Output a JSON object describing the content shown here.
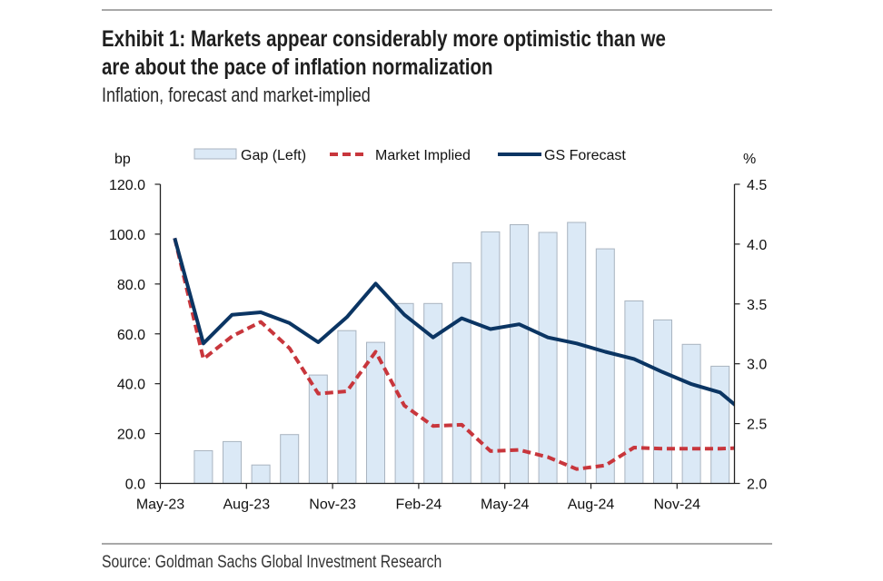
{
  "header": {
    "title_line1": "Exhibit 1: Markets appear considerably more optimistic than we",
    "title_line2": "are about the pace of inflation normalization",
    "subtitle": "Inflation, forecast and market-implied"
  },
  "footer": {
    "source": "Source: Goldman Sachs Global Investment Research"
  },
  "colors": {
    "gap_fill": "#dbe9f6",
    "gap_stroke": "#a9b4c0",
    "market_implied": "#c8363c",
    "gs_forecast": "#0b3563"
  },
  "chart_data": {
    "type": "bar+line",
    "title": "Inflation, forecast and market-implied",
    "left_axis_unit": "bp",
    "right_axis_unit": "%",
    "left_ylim": [
      0,
      120
    ],
    "right_ylim": [
      2.0,
      4.5
    ],
    "left_ticks": [
      "0.0",
      "20.0",
      "40.0",
      "60.0",
      "80.0",
      "100.0",
      "120.0"
    ],
    "right_ticks": [
      "2.0",
      "2.5",
      "3.0",
      "3.5",
      "4.0",
      "4.5"
    ],
    "x_tick_labels": [
      "May-23",
      "Aug-23",
      "Nov-23",
      "Feb-24",
      "May-24",
      "Aug-24",
      "Nov-24"
    ],
    "categories": [
      "May-23",
      "Jun-23",
      "Jul-23",
      "Aug-23",
      "Sep-23",
      "Oct-23",
      "Nov-23",
      "Dec-23",
      "Jan-24",
      "Feb-24",
      "Mar-24",
      "Apr-24",
      "May-24",
      "Jun-24",
      "Jul-24",
      "Aug-24",
      "Sep-24",
      "Oct-24",
      "Nov-24",
      "Dec-24",
      "Jan-25"
    ],
    "legend": [
      "Gap (Left)",
      "Market Implied",
      "GS Forecast"
    ],
    "legend_position": "top",
    "grid": false,
    "series": [
      {
        "name": "Gap (Left)",
        "type": "bar",
        "axis": "left",
        "values": [
          null,
          13.1,
          16.8,
          7.4,
          19.6,
          43.5,
          61.3,
          56.6,
          72.2,
          72.2,
          88.5,
          100.9,
          103.8,
          100.7,
          104.7,
          94.1,
          73.2,
          65.6,
          55.8,
          47.0,
          null
        ]
      },
      {
        "name": "Market Implied",
        "type": "line",
        "style": "dashed",
        "axis": "right",
        "values": [
          4.05,
          3.04,
          3.23,
          3.35,
          3.13,
          2.75,
          2.77,
          3.1,
          2.65,
          2.48,
          2.49,
          2.27,
          2.28,
          2.22,
          2.12,
          2.15,
          2.3,
          2.29,
          2.29,
          2.29,
          2.3
        ]
      },
      {
        "name": "GS Forecast",
        "type": "line",
        "style": "solid",
        "axis": "right",
        "values": [
          4.05,
          3.17,
          3.41,
          3.43,
          3.34,
          3.18,
          3.39,
          3.67,
          3.41,
          3.22,
          3.38,
          3.29,
          3.33,
          3.22,
          3.17,
          3.1,
          3.04,
          2.93,
          2.83,
          2.76,
          2.56
        ]
      }
    ]
  }
}
